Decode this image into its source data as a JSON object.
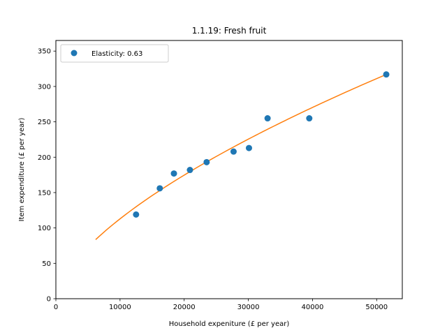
{
  "chart_data": {
    "type": "scatter",
    "title": "1.1.19: Fresh fruit",
    "xlabel": "Household expeniture (£ per year)",
    "ylabel": "Item expenditure (£ per year)",
    "xlim": [
      0,
      54000
    ],
    "ylim": [
      0,
      365
    ],
    "xticks": [
      0,
      10000,
      20000,
      30000,
      40000,
      50000
    ],
    "yticks": [
      0,
      50,
      100,
      150,
      200,
      250,
      300,
      350
    ],
    "grid": false,
    "legend": {
      "placement": "top-left",
      "label": "Elasticity: 0.63"
    },
    "points": {
      "color": "#1f77b4",
      "x": [
        12500,
        16200,
        18400,
        20900,
        23500,
        27700,
        30100,
        33000,
        39500,
        51500
      ],
      "y": [
        119,
        156,
        177,
        182,
        193,
        208,
        213,
        255,
        255,
        317
      ]
    },
    "fit": {
      "color": "#ff7f0e",
      "elasticity": 0.63,
      "x_start": 6200,
      "x_end": 51500,
      "y_at_end": 317
    }
  }
}
